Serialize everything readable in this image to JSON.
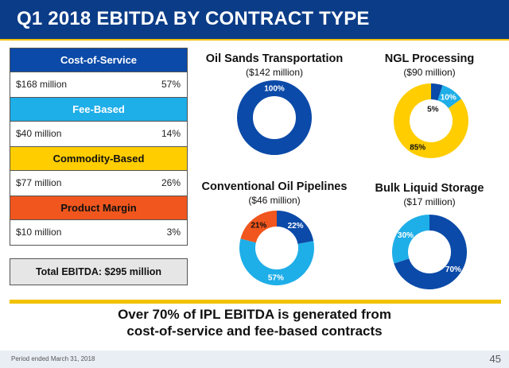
{
  "header": {
    "title": "Q1 2018 EBITDA BY CONTRACT TYPE"
  },
  "colors": {
    "header_bg": "#0b3c87",
    "accent_yellow": "#f2c200",
    "cost_of_service": "#0b4aa8",
    "fee_based": "#1eaee8",
    "commodity_based": "#ffcd00",
    "product_margin": "#f0561d"
  },
  "legend": [
    {
      "label": "Cost-of-Service",
      "amount": "$168 million",
      "pct": "57%"
    },
    {
      "label": "Fee-Based",
      "amount": "$40 million",
      "pct": "14%"
    },
    {
      "label": "Commodity-Based",
      "amount": "$77 million",
      "pct": "26%"
    },
    {
      "label": "Product Margin",
      "amount": "$10 million",
      "pct": "3%"
    }
  ],
  "total": "Total EBITDA: $295 million",
  "chart_data": [
    {
      "type": "pie",
      "title": "Oil Sands Transportation",
      "subtitle": "($142 million)",
      "slices": [
        {
          "category": "Cost-of-Service",
          "value": 100,
          "label": "100%"
        }
      ]
    },
    {
      "type": "pie",
      "title": "NGL Processing",
      "subtitle": "($90 million)",
      "slices": [
        {
          "category": "Cost-of-Service",
          "value": 5,
          "label": "5%"
        },
        {
          "category": "Fee-Based",
          "value": 10,
          "label": "10%"
        },
        {
          "category": "Commodity-Based",
          "value": 85,
          "label": "85%"
        }
      ]
    },
    {
      "type": "pie",
      "title": "Conventional Oil Pipelines",
      "subtitle": "($46 million)",
      "slices": [
        {
          "category": "Cost-of-Service",
          "value": 22,
          "label": "22%"
        },
        {
          "category": "Fee-Based",
          "value": 57,
          "label": "57%"
        },
        {
          "category": "Product Margin",
          "value": 21,
          "label": "21%"
        }
      ]
    },
    {
      "type": "pie",
      "title": "Bulk Liquid Storage",
      "subtitle": "($17 million)",
      "slices": [
        {
          "category": "Cost-of-Service",
          "value": 70,
          "label": "70%"
        },
        {
          "category": "Fee-Based",
          "value": 30,
          "label": "30%"
        }
      ]
    }
  ],
  "takeaway": {
    "line1": "Over 70% of IPL EBITDA is generated from",
    "line2": "cost-of-service and fee-based contracts"
  },
  "footer": {
    "note": "Period ended March 31, 2018",
    "page": "45"
  }
}
